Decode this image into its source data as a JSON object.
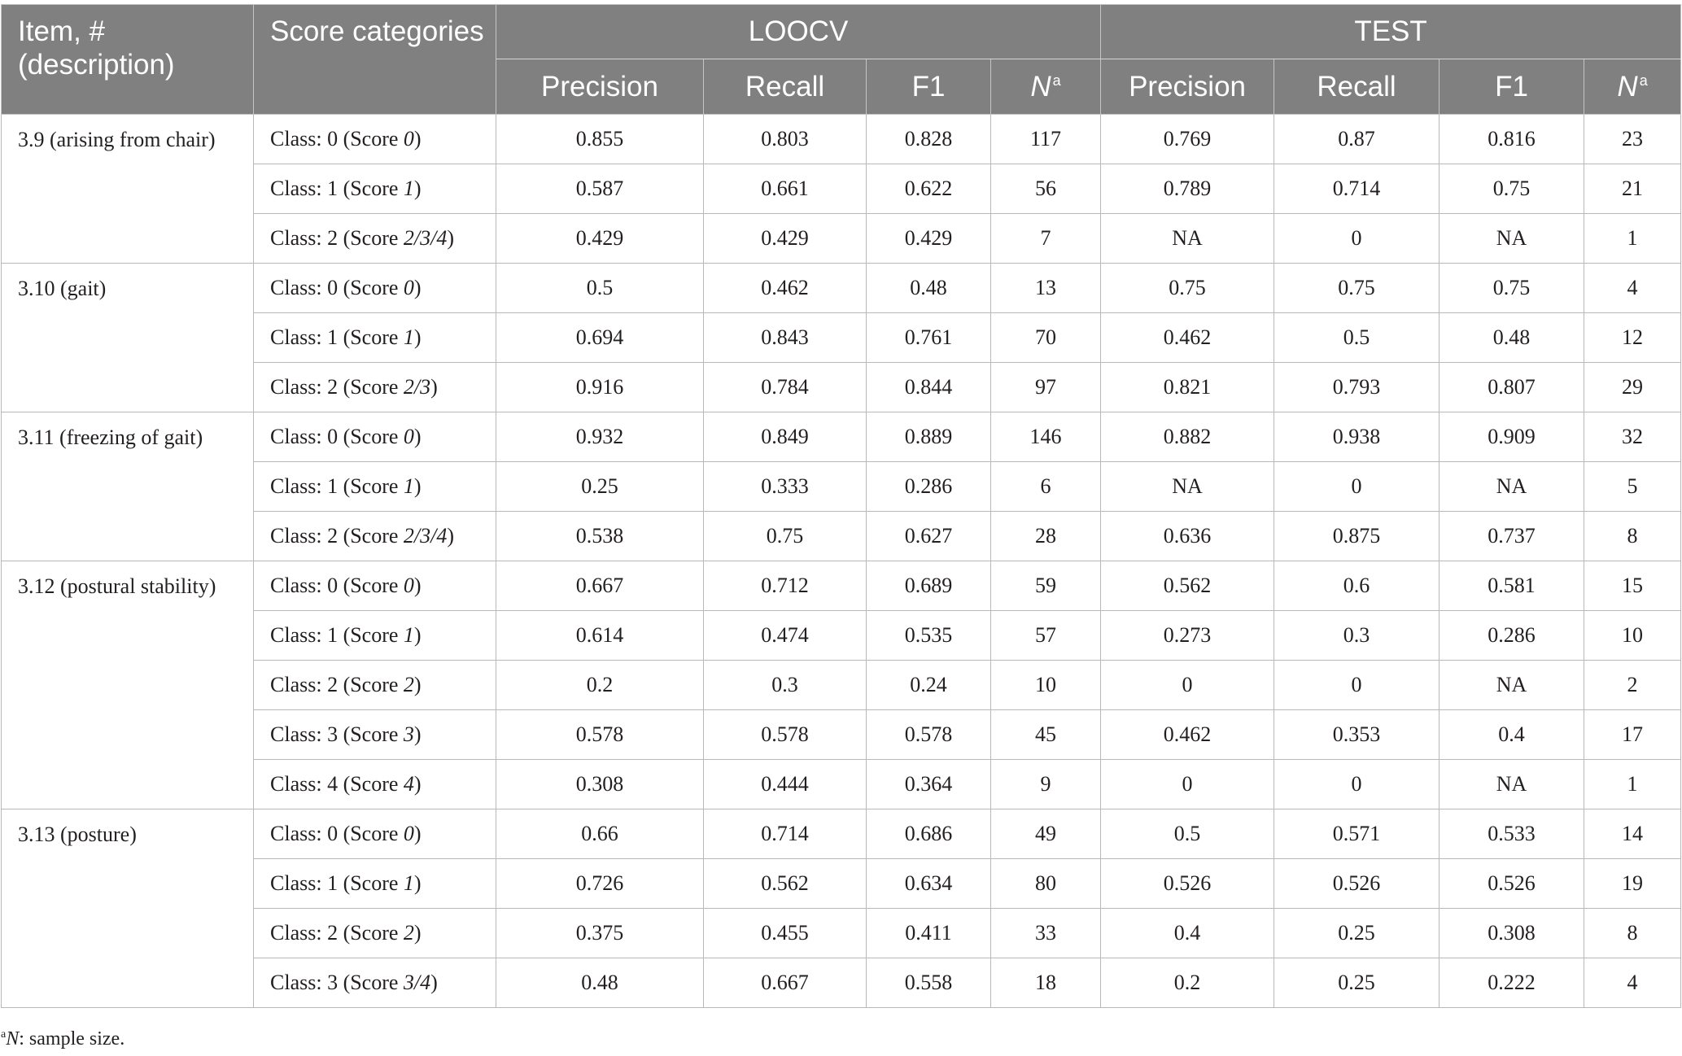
{
  "header": {
    "item_col": "Item, # (description)",
    "category_col": "Score categories",
    "groups": [
      "LOOCV",
      "TEST"
    ],
    "metrics": [
      "Precision",
      "Recall",
      "F1",
      "N"
    ],
    "n_superscript": "a"
  },
  "rows": [
    {
      "item": "3.9 (arising from chair)",
      "class": "Class: 0 (Score ",
      "score": "0",
      "loocv": [
        "0.855",
        "0.803",
        "0.828",
        "117"
      ],
      "test": [
        "0.769",
        "0.87",
        "0.816",
        "23"
      ]
    },
    {
      "item": "",
      "class": "Class: 1 (Score ",
      "score": "1",
      "loocv": [
        "0.587",
        "0.661",
        "0.622",
        "56"
      ],
      "test": [
        "0.789",
        "0.714",
        "0.75",
        "21"
      ]
    },
    {
      "item": "",
      "class": "Class: 2 (Score ",
      "score": "2/3/4",
      "loocv": [
        "0.429",
        "0.429",
        "0.429",
        "7"
      ],
      "test": [
        "NA",
        "0",
        "NA",
        "1"
      ]
    },
    {
      "item": "3.10 (gait)",
      "class": "Class: 0 (Score ",
      "score": "0",
      "loocv": [
        "0.5",
        "0.462",
        "0.48",
        "13"
      ],
      "test": [
        "0.75",
        "0.75",
        "0.75",
        "4"
      ]
    },
    {
      "item": "",
      "class": "Class: 1 (Score ",
      "score": "1",
      "loocv": [
        "0.694",
        "0.843",
        "0.761",
        "70"
      ],
      "test": [
        "0.462",
        "0.5",
        "0.48",
        "12"
      ]
    },
    {
      "item": "",
      "class": "Class: 2 (Score ",
      "score": "2/3",
      "loocv": [
        "0.916",
        "0.784",
        "0.844",
        "97"
      ],
      "test": [
        "0.821",
        "0.793",
        "0.807",
        "29"
      ]
    },
    {
      "item": "3.11 (freezing of gait)",
      "class": "Class: 0 (Score ",
      "score": "0",
      "loocv": [
        "0.932",
        "0.849",
        "0.889",
        "146"
      ],
      "test": [
        "0.882",
        "0.938",
        "0.909",
        "32"
      ]
    },
    {
      "item": "",
      "class": "Class: 1 (Score ",
      "score": "1",
      "loocv": [
        "0.25",
        "0.333",
        "0.286",
        "6"
      ],
      "test": [
        "NA",
        "0",
        "NA",
        "5"
      ]
    },
    {
      "item": "",
      "class": "Class: 2 (Score ",
      "score": "2/3/4",
      "loocv": [
        "0.538",
        "0.75",
        "0.627",
        "28"
      ],
      "test": [
        "0.636",
        "0.875",
        "0.737",
        "8"
      ]
    },
    {
      "item": "3.12 (postural stability)",
      "class": "Class: 0 (Score ",
      "score": "0",
      "loocv": [
        "0.667",
        "0.712",
        "0.689",
        "59"
      ],
      "test": [
        "0.562",
        "0.6",
        "0.581",
        "15"
      ]
    },
    {
      "item": "",
      "class": "Class: 1 (Score ",
      "score": "1",
      "loocv": [
        "0.614",
        "0.474",
        "0.535",
        "57"
      ],
      "test": [
        "0.273",
        "0.3",
        "0.286",
        "10"
      ]
    },
    {
      "item": "",
      "class": "Class: 2 (Score ",
      "score": "2",
      "loocv": [
        "0.2",
        "0.3",
        "0.24",
        "10"
      ],
      "test": [
        "0",
        "0",
        "NA",
        "2"
      ]
    },
    {
      "item": "",
      "class": "Class: 3 (Score ",
      "score": "3",
      "loocv": [
        "0.578",
        "0.578",
        "0.578",
        "45"
      ],
      "test": [
        "0.462",
        "0.353",
        "0.4",
        "17"
      ]
    },
    {
      "item": "",
      "class": "Class: 4 (Score ",
      "score": "4",
      "loocv": [
        "0.308",
        "0.444",
        "0.364",
        "9"
      ],
      "test": [
        "0",
        "0",
        "NA",
        "1"
      ]
    },
    {
      "item": "3.13 (posture)",
      "class": "Class: 0 (Score ",
      "score": "0",
      "loocv": [
        "0.66",
        "0.714",
        "0.686",
        "49"
      ],
      "test": [
        "0.5",
        "0.571",
        "0.533",
        "14"
      ]
    },
    {
      "item": "",
      "class": "Class: 1 (Score ",
      "score": "1",
      "loocv": [
        "0.726",
        "0.562",
        "0.634",
        "80"
      ],
      "test": [
        "0.526",
        "0.526",
        "0.526",
        "19"
      ]
    },
    {
      "item": "",
      "class": "Class: 2 (Score ",
      "score": "2",
      "loocv": [
        "0.375",
        "0.455",
        "0.411",
        "33"
      ],
      "test": [
        "0.4",
        "0.25",
        "0.308",
        "8"
      ]
    },
    {
      "item": "",
      "class": "Class: 3 (Score ",
      "score": "3/4",
      "loocv": [
        "0.48",
        "0.667",
        "0.558",
        "18"
      ],
      "test": [
        "0.2",
        "0.25",
        "0.222",
        "4"
      ]
    }
  ],
  "footnote": {
    "marker": "a",
    "symbol": "N",
    "text": ": sample size."
  }
}
